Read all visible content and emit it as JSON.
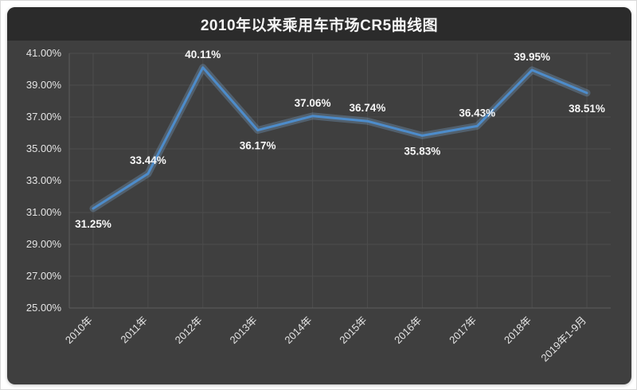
{
  "title": "2010年以来乘用车市场CR5曲线图",
  "chart_data": {
    "type": "line",
    "title": "2010年以来乘用车市场CR5曲线图",
    "categories": [
      "2010年",
      "2011年",
      "2012年",
      "2013年",
      "2014年",
      "2015年",
      "2016年",
      "2017年",
      "2018年",
      "2019年1-9月"
    ],
    "values": [
      31.25,
      33.44,
      40.11,
      36.17,
      37.06,
      36.74,
      35.83,
      36.43,
      39.95,
      38.51
    ],
    "data_labels": [
      "31.25%",
      "33.44%",
      "40.11%",
      "36.17%",
      "37.06%",
      "36.74%",
      "35.83%",
      "36.43%",
      "39.95%",
      "38.51%"
    ],
    "xlabel": "",
    "ylabel": "",
    "ylim": [
      25,
      41
    ],
    "ytick_step": 2,
    "ytick_labels": [
      "25.00%",
      "27.00%",
      "29.00%",
      "31.00%",
      "33.00%",
      "35.00%",
      "37.00%",
      "39.00%",
      "41.00%"
    ],
    "grid": true,
    "legend_position": "none",
    "layout_hints": {
      "label_below_indices": [
        0,
        3,
        6,
        9
      ],
      "x_label_rotation": -45
    },
    "colors": {
      "background": "#3f3f3f",
      "title_bar": "#2b2b2b",
      "grid": "#4d4d4d",
      "axis": "#5c5c5c",
      "text": "#e4e4e4",
      "line": "#4d8ccb",
      "line_glow": "#84b7e6",
      "data_label": "#f7f7f7"
    }
  }
}
